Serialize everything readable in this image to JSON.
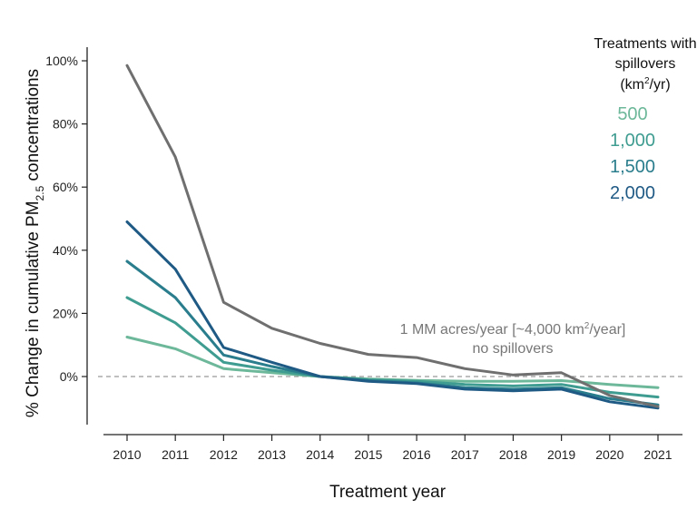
{
  "chart_data": {
    "type": "line",
    "xlabel": "Treatment year",
    "ylabel_prefix": "% Change in cumulative PM",
    "ylabel_sub": "2.5",
    "ylabel_suffix": " concentrations",
    "x": [
      2010,
      2011,
      2012,
      2013,
      2014,
      2015,
      2016,
      2017,
      2018,
      2019,
      2020,
      2021
    ],
    "y_ticks": [
      {
        "value": 0,
        "label": "0%"
      },
      {
        "value": 20,
        "label": "20%"
      },
      {
        "value": 40,
        "label": "40%"
      },
      {
        "value": 60,
        "label": "60%"
      },
      {
        "value": 80,
        "label": "80%"
      },
      {
        "value": 100,
        "label": "100%"
      }
    ],
    "ylim": [
      -15,
      104
    ],
    "reference_line": 0,
    "grid": false,
    "legend": {
      "title_line1": "Treatments with",
      "title_line2": "spillovers",
      "title_line3_pre": "(km",
      "title_line3_sup": "2",
      "title_line3_post": "/yr)",
      "placement": "top-right"
    },
    "series": [
      {
        "name": "500",
        "color": "#6db89a",
        "values": [
          12.5,
          8.8,
          2.5,
          1.2,
          0.0,
          -0.8,
          -1.2,
          -1.5,
          -1.5,
          -1.3,
          -2.5,
          -3.5
        ]
      },
      {
        "name": "1,000",
        "color": "#3f9c90",
        "values": [
          25.0,
          17.0,
          4.5,
          2.0,
          0.0,
          -1.0,
          -1.5,
          -2.5,
          -3.0,
          -2.5,
          -5.0,
          -6.5
        ]
      },
      {
        "name": "1,500",
        "color": "#2a7d8c",
        "values": [
          36.5,
          25.0,
          6.8,
          3.2,
          0.0,
          -1.3,
          -2.0,
          -3.5,
          -4.0,
          -3.5,
          -7.0,
          -9.0
        ]
      },
      {
        "name": "2,000",
        "color": "#1f5a85",
        "values": [
          49.0,
          34.0,
          9.2,
          4.5,
          0.0,
          -1.5,
          -2.2,
          -4.0,
          -4.5,
          -4.0,
          -8.0,
          -10.0
        ]
      },
      {
        "color": "#6f6f6f",
        "values": [
          98.5,
          69.5,
          23.5,
          15.3,
          10.5,
          7.0,
          6.0,
          2.5,
          0.5,
          1.2,
          -6.0,
          -9.5
        ]
      }
    ],
    "annotation_line1_pre": "1 MM acres/year [~4,000 km",
    "annotation_line1_sup": "2",
    "annotation_line1_post": "/year]",
    "annotation_line2": "no spillovers"
  }
}
